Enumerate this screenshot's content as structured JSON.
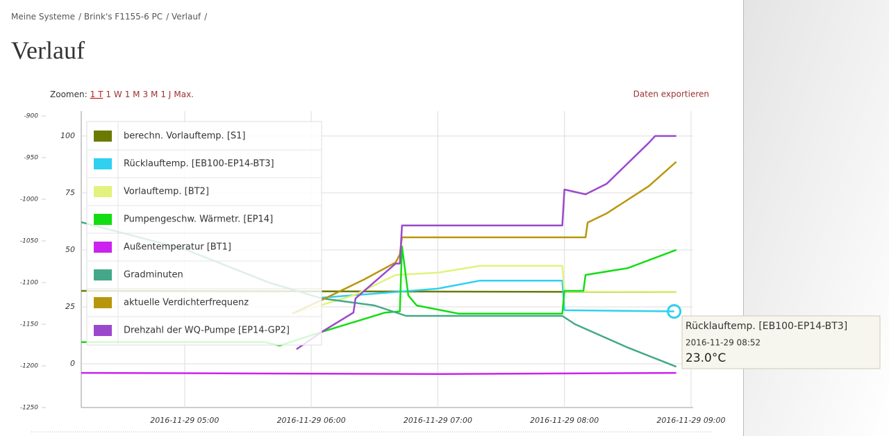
{
  "page": {
    "breadcrumb": [
      "Meine Systeme",
      "Brink's F1155-6 PC",
      "Verlauf"
    ],
    "breadcrumb_separator": "/",
    "heading": "Verlauf",
    "zoom_label": "Zoomen:",
    "zoom_options": [
      "1 T",
      "1 W",
      "1 M",
      "3 M",
      "1 J",
      "Max."
    ],
    "zoom_active": 0,
    "export": "Daten exportieren",
    "tooltip": {
      "series": "Rücklauftemp. [EB100-EP14-BT3]",
      "time": "2016-11-29 08:52",
      "value": "23.0°C"
    }
  },
  "chart_data": {
    "type": "line",
    "xlim": [
      "2016-11-29 04:11",
      "2016-11-29 09:01"
    ],
    "xticks": [
      "2016-11-29 05:00",
      "2016-11-29 06:00",
      "2016-11-29 07:00",
      "2016-11-29 08:00",
      "2016-11-29 09:00"
    ],
    "ylim": [
      -19.2,
      108.8
    ],
    "yticks": [
      0,
      25,
      50,
      75,
      100
    ],
    "y2lim": [
      -1250,
      -900
    ],
    "y2ticks": [
      -900,
      -950,
      -1000,
      -1050,
      -1100,
      -1150,
      -1200,
      -1250
    ],
    "grid": true,
    "series": [
      {
        "name": "berechn. Vorlauftemp. [S1]",
        "color": "#6b7a00",
        "x": [
          "2016-11-29 04:11",
          "2016-11-29 08:53"
        ],
        "values": [
          32,
          31.5
        ]
      },
      {
        "name": "Rücklauftemp. [EB100-EP14-BT3]",
        "color": "#2fd0f0",
        "x": [
          "2016-11-29 06:05",
          "2016-11-29 06:40",
          "2016-11-29 07:00",
          "2016-11-29 07:20",
          "2016-11-29 07:59",
          "2016-11-29 08:00",
          "2016-11-29 08:52"
        ],
        "values": [
          29,
          31.5,
          33,
          36.5,
          36.5,
          23.5,
          23.0
        ]
      },
      {
        "name": "Vorlauftemp. [BT2]",
        "color": "#e2f27c",
        "x": [
          "2016-11-29 05:51",
          "2016-11-29 06:20",
          "2016-11-29 06:40",
          "2016-11-29 07:00",
          "2016-11-29 07:20",
          "2016-11-29 07:59",
          "2016-11-29 08:00",
          "2016-11-29 08:53"
        ],
        "values": [
          22,
          30,
          39,
          40,
          43,
          43,
          31.7,
          31.5
        ]
      },
      {
        "name": "Pumpengeschw. Wärmetr. [EP14]",
        "color": "#12dd12",
        "x": [
          "2016-11-29 04:11",
          "2016-11-29 05:38",
          "2016-11-29 05:45",
          "2016-11-29 06:05",
          "2016-11-29 06:35",
          "2016-11-29 06:42",
          "2016-11-29 06:43",
          "2016-11-29 06:46",
          "2016-11-29 06:50",
          "2016-11-29 07:10",
          "2016-11-29 07:59",
          "2016-11-29 08:00",
          "2016-11-29 08:09",
          "2016-11-29 08:10",
          "2016-11-29 08:30",
          "2016-11-29 08:53"
        ],
        "values": [
          9.5,
          9.5,
          8,
          14,
          22.5,
          23,
          51.5,
          30,
          25.6,
          22,
          22,
          32,
          32,
          39,
          42,
          50
        ]
      },
      {
        "name": "Außentemperatur [BT1]",
        "color": "#cc22ee",
        "x": [
          "2016-11-29 04:11",
          "2016-11-29 07:00",
          "2016-11-29 08:53"
        ],
        "values": [
          -4,
          -4.5,
          -4
        ]
      },
      {
        "name": "Gradminuten",
        "color": "#44a888",
        "axis": "y2",
        "x": [
          "2016-11-29 04:11",
          "2016-11-29 05:00",
          "2016-11-29 05:40",
          "2016-11-29 06:05",
          "2016-11-29 06:30",
          "2016-11-29 06:45",
          "2016-11-29 07:59",
          "2016-11-29 08:05",
          "2016-11-29 08:30",
          "2016-11-29 08:53"
        ],
        "values": [
          -1027.5,
          -1060,
          -1100,
          -1119,
          -1127.5,
          -1140,
          -1140,
          -1150,
          -1178,
          -1201
        ]
      },
      {
        "name": "aktuelle Verdichterfrequenz",
        "color": "#b8960c",
        "x": [
          "2016-11-29 05:51",
          "2016-11-29 06:05",
          "2016-11-29 06:25",
          "2016-11-29 06:40",
          "2016-11-29 06:42",
          "2016-11-29 06:43",
          "2016-11-29 08:10",
          "2016-11-29 08:11",
          "2016-11-29 08:20",
          "2016-11-29 08:40",
          "2016-11-29 08:53"
        ],
        "values": [
          22,
          28,
          37,
          44.5,
          48,
          55.5,
          55.5,
          62,
          66,
          78,
          88.7
        ]
      },
      {
        "name": "Drehzahl der WQ-Pumpe [EP14-GP2]",
        "color": "#9a48cc",
        "x": [
          "2016-11-29 05:53",
          "2016-11-29 06:05",
          "2016-11-29 06:20",
          "2016-11-29 06:21",
          "2016-11-29 06:40",
          "2016-11-29 06:42",
          "2016-11-29 06:43",
          "2016-11-29 07:59",
          "2016-11-29 08:00",
          "2016-11-29 08:10",
          "2016-11-29 08:20",
          "2016-11-29 08:40",
          "2016-11-29 08:43",
          "2016-11-29 08:53"
        ],
        "values": [
          6.4,
          14,
          22.5,
          28.7,
          44,
          44,
          60.7,
          60.7,
          76.5,
          74.4,
          79,
          97,
          100,
          100
        ]
      }
    ]
  }
}
